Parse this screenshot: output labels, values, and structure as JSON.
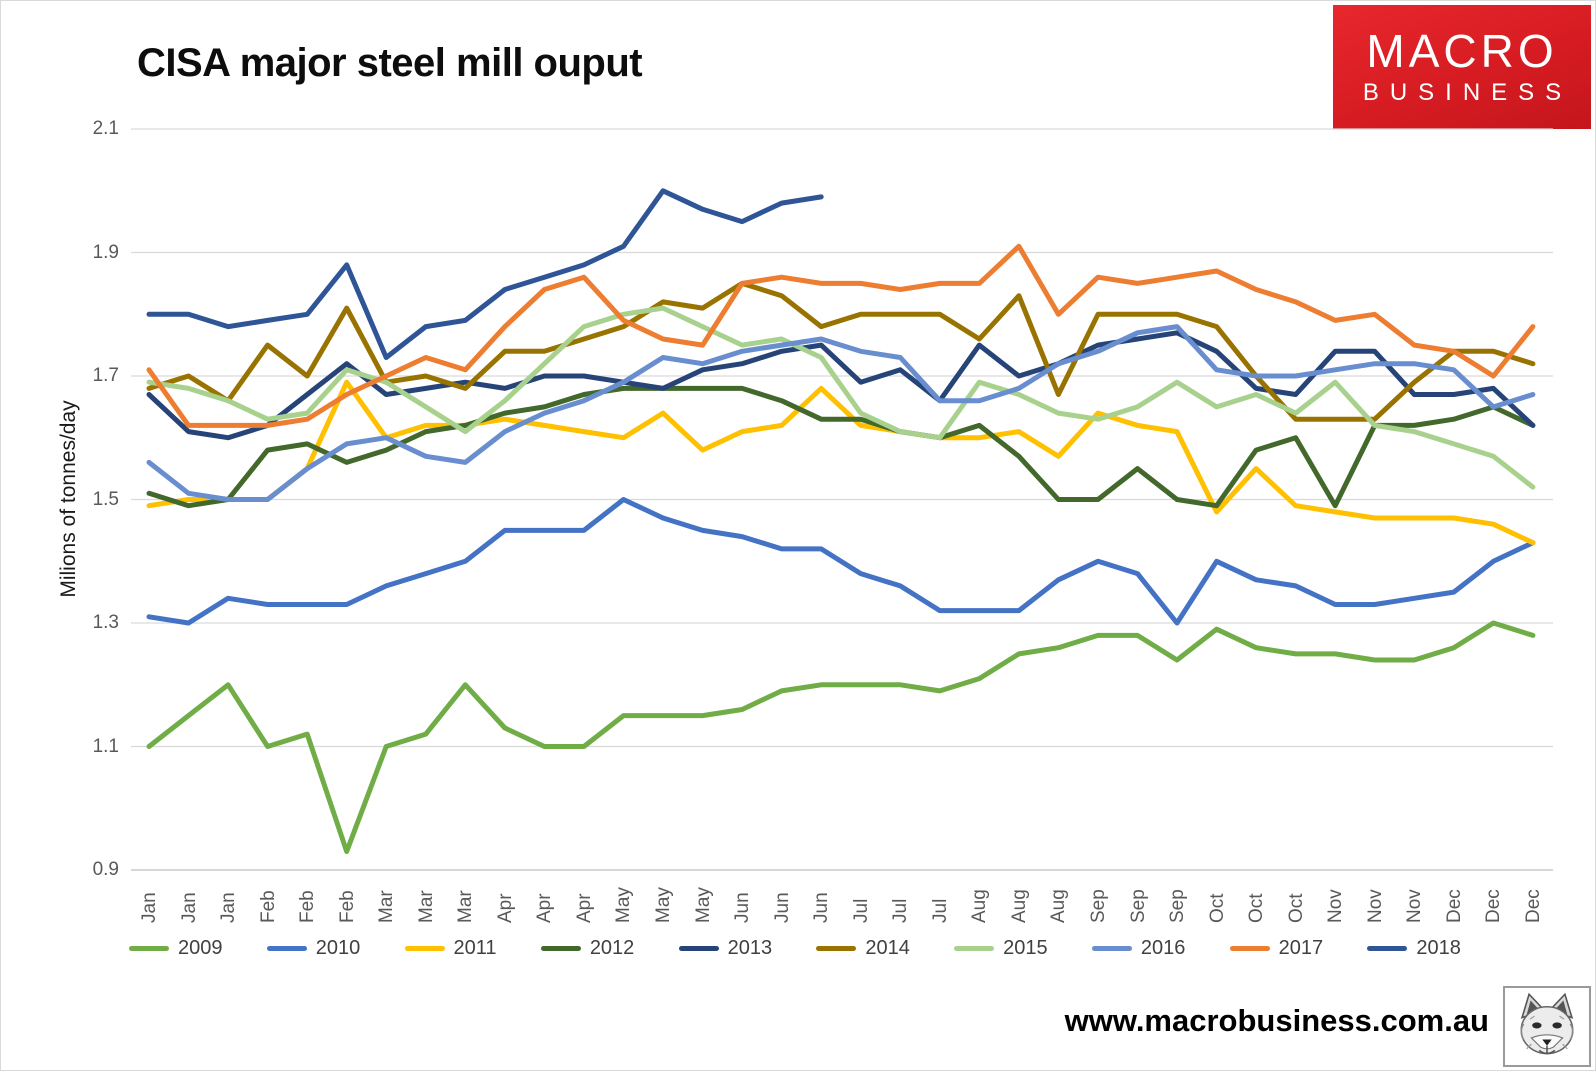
{
  "header": {
    "title": "CISA major steel mill ouput"
  },
  "logo": {
    "line1": "MACRO",
    "line2": "BUSINESS",
    "bg_color": "#D61C22",
    "text_color": "#FFFFFF"
  },
  "footer": {
    "website": "www.macrobusiness.com.au",
    "fox_icon": "fox-sketch-icon"
  },
  "styles": {
    "grid_color": "#D9D9D9",
    "axis_color": "#BFBFBF",
    "tick_color": "#595959",
    "legend_text_color": "#404040"
  },
  "chart_data": {
    "type": "line",
    "title": "CISA major steel mill ouput",
    "xlabel": "",
    "ylabel": "Milions of tonnes/day",
    "ylim": [
      0.9,
      2.1
    ],
    "yticks": [
      2.1,
      1.9,
      1.7,
      1.5,
      1.3,
      1.1,
      0.9
    ],
    "grid": true,
    "legend_position": "bottom",
    "categories": [
      "Jan",
      "Jan",
      "Jan",
      "Feb",
      "Feb",
      "Feb",
      "Mar",
      "Mar",
      "Mar",
      "Apr",
      "Apr",
      "Apr",
      "May",
      "May",
      "May",
      "Jun",
      "Jun",
      "Jun",
      "Jul",
      "Jul",
      "Jul",
      "Aug",
      "Aug",
      "Aug",
      "Sep",
      "Sep",
      "Sep",
      "Oct",
      "Oct",
      "Oct",
      "Nov",
      "Nov",
      "Nov",
      "Dec",
      "Dec",
      "Dec"
    ],
    "series": [
      {
        "name": "2009",
        "color": "#70AD47",
        "values": [
          1.1,
          1.15,
          1.2,
          1.1,
          1.12,
          0.93,
          1.1,
          1.12,
          1.2,
          1.13,
          1.1,
          1.1,
          1.15,
          1.15,
          1.15,
          1.16,
          1.19,
          1.2,
          1.2,
          1.2,
          1.19,
          1.21,
          1.25,
          1.26,
          1.28,
          1.28,
          1.24,
          1.29,
          1.26,
          1.25,
          1.25,
          1.24,
          1.24,
          1.26,
          1.3,
          1.28
        ]
      },
      {
        "name": "2010",
        "color": "#4472C4",
        "values": [
          1.31,
          1.3,
          1.34,
          1.33,
          1.33,
          1.33,
          1.36,
          1.38,
          1.4,
          1.45,
          1.45,
          1.45,
          1.5,
          1.47,
          1.45,
          1.44,
          1.42,
          1.42,
          1.38,
          1.36,
          1.32,
          1.32,
          1.32,
          1.37,
          1.4,
          1.38,
          1.3,
          1.4,
          1.37,
          1.36,
          1.33,
          1.33,
          1.34,
          1.35,
          1.4,
          1.43
        ]
      },
      {
        "name": "2011",
        "color": "#FFC000",
        "values": [
          1.49,
          1.5,
          1.5,
          1.5,
          1.55,
          1.69,
          1.6,
          1.62,
          1.62,
          1.63,
          1.62,
          1.61,
          1.6,
          1.64,
          1.58,
          1.61,
          1.62,
          1.68,
          1.62,
          1.61,
          1.6,
          1.6,
          1.61,
          1.57,
          1.64,
          1.62,
          1.61,
          1.48,
          1.55,
          1.49,
          1.48,
          1.47,
          1.47,
          1.47,
          1.46,
          1.43
        ]
      },
      {
        "name": "2012",
        "color": "#43682B",
        "values": [
          1.51,
          1.49,
          1.5,
          1.58,
          1.59,
          1.56,
          1.58,
          1.61,
          1.62,
          1.64,
          1.65,
          1.67,
          1.68,
          1.68,
          1.68,
          1.68,
          1.66,
          1.63,
          1.63,
          1.61,
          1.6,
          1.62,
          1.57,
          1.5,
          1.5,
          1.55,
          1.5,
          1.49,
          1.58,
          1.6,
          1.49,
          1.62,
          1.62,
          1.63,
          1.65,
          1.62
        ]
      },
      {
        "name": "2013",
        "color": "#264478",
        "values": [
          1.67,
          1.61,
          1.6,
          1.62,
          1.67,
          1.72,
          1.67,
          1.68,
          1.69,
          1.68,
          1.7,
          1.7,
          1.69,
          1.68,
          1.71,
          1.72,
          1.74,
          1.75,
          1.69,
          1.71,
          1.66,
          1.75,
          1.7,
          1.72,
          1.75,
          1.76,
          1.77,
          1.74,
          1.68,
          1.67,
          1.74,
          1.74,
          1.67,
          1.67,
          1.68,
          1.62
        ]
      },
      {
        "name": "2014",
        "color": "#997300",
        "values": [
          1.68,
          1.7,
          1.66,
          1.75,
          1.7,
          1.81,
          1.69,
          1.7,
          1.68,
          1.74,
          1.74,
          1.76,
          1.78,
          1.82,
          1.81,
          1.85,
          1.83,
          1.78,
          1.8,
          1.8,
          1.8,
          1.76,
          1.83,
          1.67,
          1.8,
          1.8,
          1.8,
          1.78,
          1.7,
          1.63,
          1.63,
          1.63,
          1.69,
          1.74,
          1.74,
          1.72
        ]
      },
      {
        "name": "2015",
        "color": "#A9D18E",
        "values": [
          1.69,
          1.68,
          1.66,
          1.63,
          1.64,
          1.71,
          1.69,
          1.65,
          1.61,
          1.66,
          1.72,
          1.78,
          1.8,
          1.81,
          1.78,
          1.75,
          1.76,
          1.73,
          1.64,
          1.61,
          1.6,
          1.69,
          1.67,
          1.64,
          1.63,
          1.65,
          1.69,
          1.65,
          1.67,
          1.64,
          1.69,
          1.62,
          1.61,
          1.59,
          1.57,
          1.52
        ]
      },
      {
        "name": "2016",
        "color": "#698ED0",
        "values": [
          1.56,
          1.51,
          1.5,
          1.5,
          1.55,
          1.59,
          1.6,
          1.57,
          1.56,
          1.61,
          1.64,
          1.66,
          1.69,
          1.73,
          1.72,
          1.74,
          1.75,
          1.76,
          1.74,
          1.73,
          1.66,
          1.66,
          1.68,
          1.72,
          1.74,
          1.77,
          1.78,
          1.71,
          1.7,
          1.7,
          1.71,
          1.72,
          1.72,
          1.71,
          1.65,
          1.67
        ]
      },
      {
        "name": "2017",
        "color": "#ED7D31",
        "values": [
          1.71,
          1.62,
          1.62,
          1.62,
          1.63,
          1.67,
          1.7,
          1.73,
          1.71,
          1.78,
          1.84,
          1.86,
          1.79,
          1.76,
          1.75,
          1.85,
          1.86,
          1.85,
          1.85,
          1.84,
          1.85,
          1.85,
          1.91,
          1.8,
          1.86,
          1.85,
          1.86,
          1.87,
          1.84,
          1.82,
          1.79,
          1.8,
          1.75,
          1.74,
          1.7,
          1.78
        ]
      },
      {
        "name": "2018",
        "color": "#2F5597",
        "values": [
          1.8,
          1.8,
          1.78,
          1.79,
          1.8,
          1.88,
          1.73,
          1.78,
          1.79,
          1.84,
          1.86,
          1.88,
          1.91,
          2.0,
          1.97,
          1.95,
          1.98,
          1.99
        ]
      }
    ]
  }
}
